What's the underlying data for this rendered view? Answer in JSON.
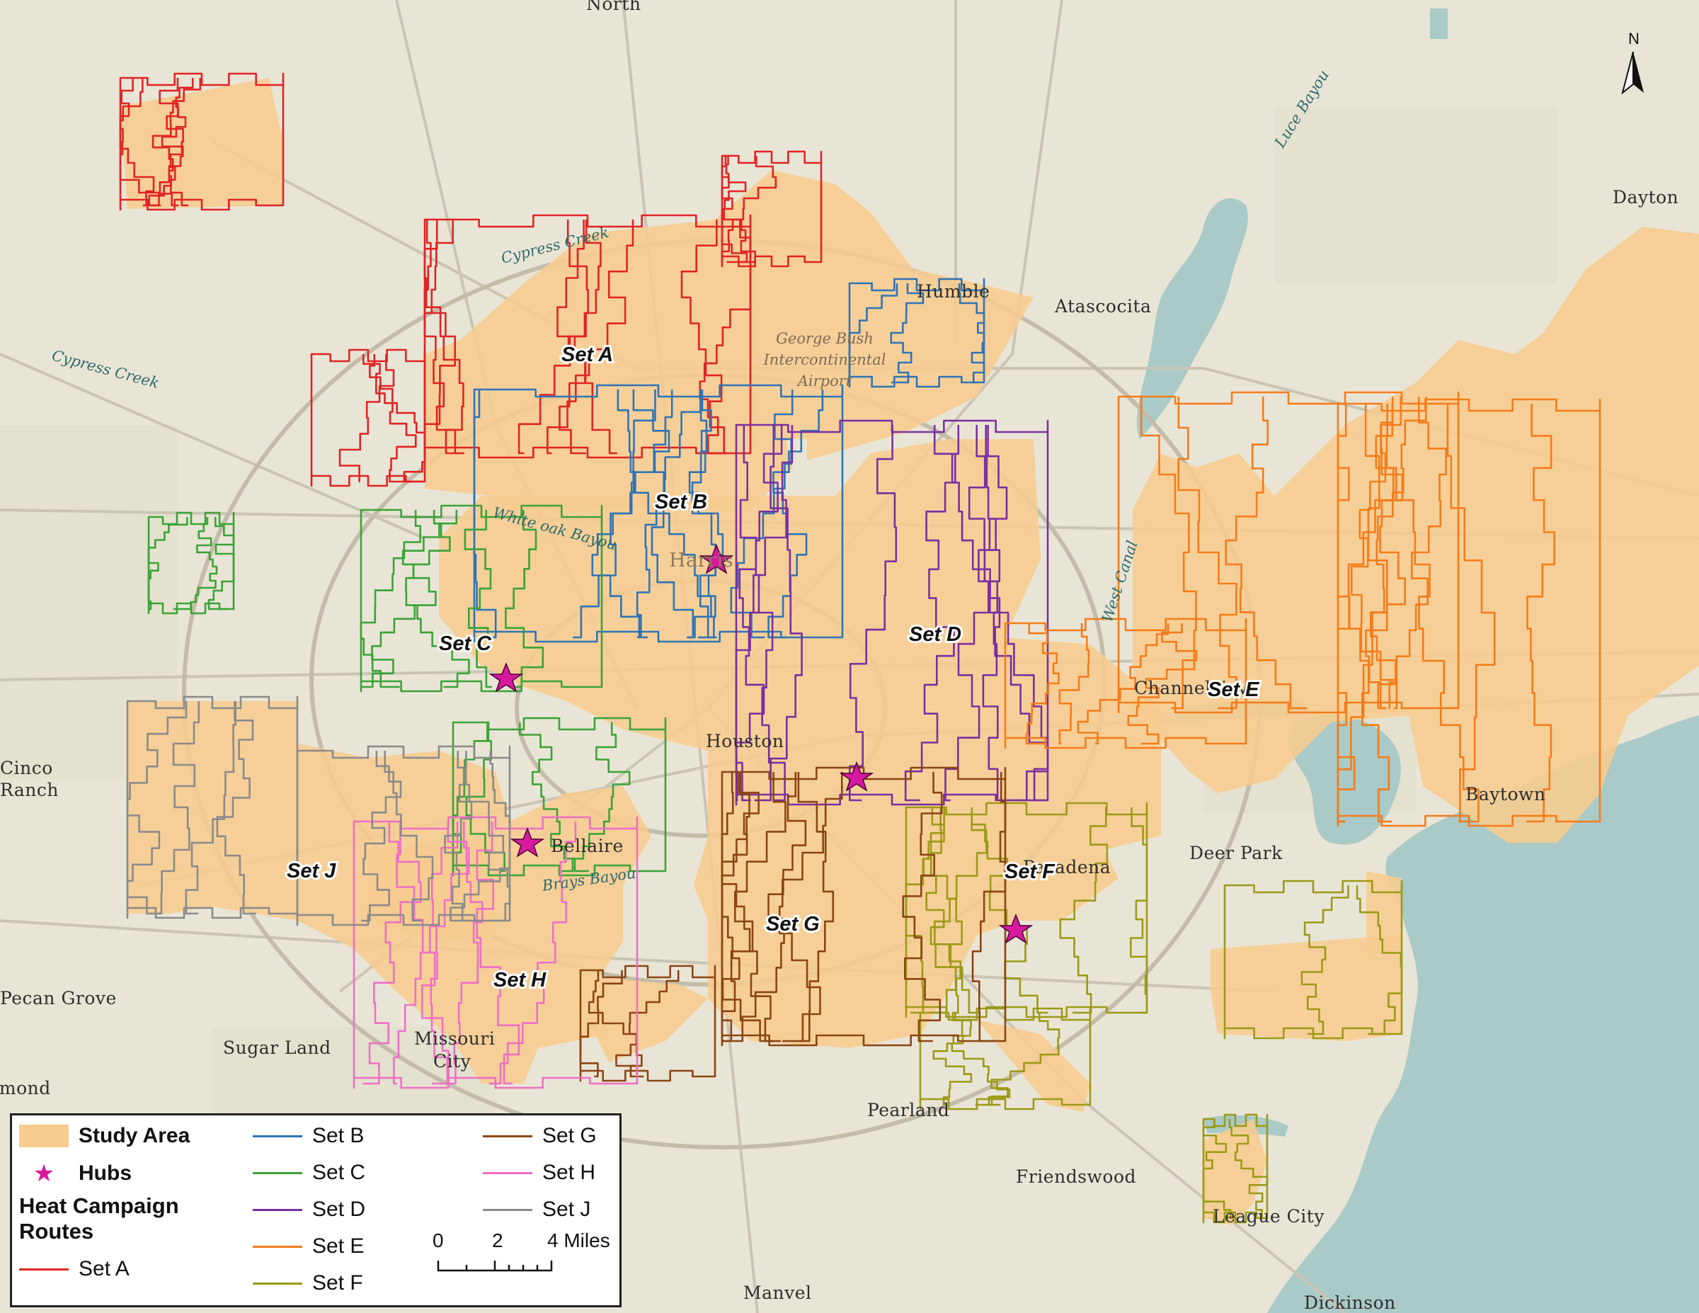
{
  "places": {
    "north": "North",
    "dayton": "Dayton",
    "humble": "Humble",
    "atascocita": "Atascocita",
    "airport": "George Bush\nIntercontinental\nAirport",
    "harris": "Harris",
    "houston": "Houston",
    "channelview": "Channelview",
    "baytown": "Baytown",
    "cinco_ranch_1": "Cinco",
    "cinco_ranch_2": "Ranch",
    "bellaire": "Bellaire",
    "pasadena": "Pasadena",
    "deer_park": "Deer Park",
    "pecan_grove": "Pecan Grove",
    "sugar_land": "Sugar Land",
    "missouri_city_1": "Missouri",
    "missouri_city_2": "City",
    "richmond": "Richmond",
    "pearland": "Pearland",
    "friendswood": "Friendswood",
    "league_city": "League City",
    "manvel": "Manvel",
    "dickinson": "Dickinson"
  },
  "water_labels": {
    "cypress_creek_1": "Cypress Creek",
    "cypress_creek_2": "Cypress Creek",
    "luce_bayou": "Luce Bayou",
    "white_oak_bayou": "White oak Bayou",
    "brays_bayou": "Brays Bayou",
    "west_canal": "West Canal"
  },
  "set_labels": {
    "a": "Set A",
    "b": "Set B",
    "c": "Set C",
    "d": "Set D",
    "e": "Set E",
    "f": "Set F",
    "g": "Set G",
    "h": "Set H",
    "j": "Set J"
  },
  "north_arrow": "N",
  "legend": {
    "study_area": "Study Area",
    "hubs": "Hubs",
    "routes_title_1": "Heat Campaign",
    "routes_title_2": "Routes",
    "set_a": "Set A",
    "set_b": "Set B",
    "set_c": "Set C",
    "set_d": "Set D",
    "set_e": "Set E",
    "set_f": "Set F",
    "set_g": "Set G",
    "set_h": "Set H",
    "set_j": "Set J",
    "scale": {
      "n0": "0",
      "n2": "2",
      "n4": "4 Miles"
    }
  },
  "colors": {
    "land": "#e9e5d6",
    "water": "#a9cac7",
    "study_area": "#f7cc8f",
    "hub": "#d6199e",
    "set_a": "#e02424",
    "set_b": "#2f74b5",
    "set_c": "#3aa337",
    "set_d": "#7b2fa0",
    "set_e": "#f47c1a",
    "set_f": "#9c9a17",
    "set_g": "#8b4513",
    "set_h": "#ee6fc6",
    "set_j": "#8a8a8a"
  }
}
